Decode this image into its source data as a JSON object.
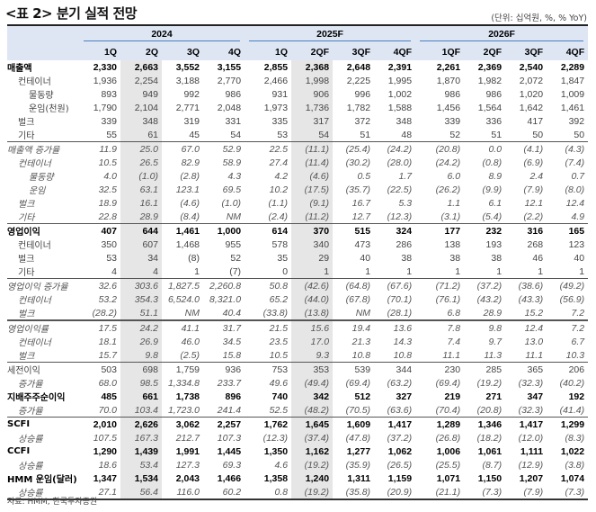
{
  "title": "<표 2> 분기 실적 전망",
  "unit": "(단위: 십억원, %, % YoY)",
  "years": [
    "2024",
    "2025F",
    "2026F"
  ],
  "quarters": [
    "1Q",
    "2Q",
    "3Q",
    "4Q",
    "1Q",
    "2QF",
    "3QF",
    "4QF",
    "1QF",
    "2QF",
    "3QF",
    "4QF"
  ],
  "rows": [
    {
      "label": "매출액",
      "style": "bold",
      "indent": 0,
      "values": [
        "2,330",
        "2,663",
        "3,552",
        "3,155",
        "2,855",
        "2,368",
        "2,648",
        "2,391",
        "2,261",
        "2,369",
        "2,540",
        "2,289"
      ]
    },
    {
      "label": "컨테이너",
      "style": "normal",
      "indent": 1,
      "values": [
        "1,936",
        "2,254",
        "3,188",
        "2,770",
        "2,466",
        "1,998",
        "2,225",
        "1,995",
        "1,870",
        "1,982",
        "2,072",
        "1,847"
      ]
    },
    {
      "label": "물동량",
      "style": "normal",
      "indent": 2,
      "values": [
        "893",
        "949",
        "992",
        "986",
        "931",
        "906",
        "996",
        "1,002",
        "986",
        "986",
        "1,020",
        "1,009"
      ]
    },
    {
      "label": "운임(천원)",
      "style": "normal",
      "indent": 2,
      "values": [
        "1,790",
        "2,104",
        "2,771",
        "2,048",
        "1,973",
        "1,736",
        "1,782",
        "1,588",
        "1,456",
        "1,564",
        "1,642",
        "1,461"
      ]
    },
    {
      "label": "벌크",
      "style": "normal",
      "indent": 1,
      "values": [
        "339",
        "348",
        "319",
        "331",
        "335",
        "317",
        "372",
        "348",
        "339",
        "336",
        "417",
        "392"
      ]
    },
    {
      "label": "기타",
      "style": "normal",
      "indent": 1,
      "values": [
        "55",
        "61",
        "45",
        "54",
        "53",
        "54",
        "51",
        "48",
        "52",
        "51",
        "50",
        "50"
      ]
    },
    {
      "label": "매출액 증가율",
      "style": "growth",
      "indent": 0,
      "sep": 1,
      "values": [
        "11.9",
        "25.0",
        "67.0",
        "52.9",
        "22.5",
        "(11.1)",
        "(25.4)",
        "(24.2)",
        "(20.8)",
        "0.0",
        "(4.1)",
        "(4.3)"
      ]
    },
    {
      "label": "컨테이너",
      "style": "growth",
      "indent": 1,
      "values": [
        "10.5",
        "26.5",
        "82.9",
        "58.9",
        "27.4",
        "(11.4)",
        "(30.2)",
        "(28.0)",
        "(24.2)",
        "(0.8)",
        "(6.9)",
        "(7.4)"
      ]
    },
    {
      "label": "물동량",
      "style": "growth",
      "indent": 2,
      "values": [
        "4.0",
        "(1.0)",
        "(2.8)",
        "4.3",
        "4.2",
        "(4.6)",
        "0.5",
        "1.7",
        "6.0",
        "8.9",
        "2.4",
        "0.7"
      ]
    },
    {
      "label": "운임",
      "style": "growth",
      "indent": 2,
      "values": [
        "32.5",
        "63.1",
        "123.1",
        "69.5",
        "10.2",
        "(17.5)",
        "(35.7)",
        "(22.5)",
        "(26.2)",
        "(9.9)",
        "(7.9)",
        "(8.0)"
      ]
    },
    {
      "label": "벌크",
      "style": "growth",
      "indent": 1,
      "values": [
        "18.9",
        "16.1",
        "(4.6)",
        "(1.0)",
        "(1.1)",
        "(9.1)",
        "16.7",
        "5.3",
        "1.1",
        "6.1",
        "12.1",
        "12.4"
      ]
    },
    {
      "label": "기타",
      "style": "growth",
      "indent": 1,
      "values": [
        "22.8",
        "28.9",
        "(8.4)",
        "NM",
        "(2.4)",
        "(11.2)",
        "12.7",
        "(12.3)",
        "(3.1)",
        "(5.4)",
        "(2.2)",
        "4.9"
      ]
    },
    {
      "label": "영업이익",
      "style": "bold",
      "indent": 0,
      "sep": 1,
      "values": [
        "407",
        "644",
        "1,461",
        "1,000",
        "614",
        "370",
        "515",
        "324",
        "177",
        "232",
        "316",
        "165"
      ]
    },
    {
      "label": "컨테이너",
      "style": "normal",
      "indent": 1,
      "values": [
        "350",
        "607",
        "1,468",
        "955",
        "578",
        "340",
        "473",
        "286",
        "138",
        "193",
        "268",
        "123"
      ]
    },
    {
      "label": "벌크",
      "style": "normal",
      "indent": 1,
      "values": [
        "53",
        "34",
        "(8)",
        "52",
        "35",
        "29",
        "40",
        "38",
        "38",
        "38",
        "46",
        "40"
      ]
    },
    {
      "label": "기타",
      "style": "normal",
      "indent": 1,
      "values": [
        "4",
        "4",
        "1",
        "(7)",
        "0",
        "1",
        "1",
        "1",
        "1",
        "1",
        "1",
        "1"
      ]
    },
    {
      "label": "영업이익 증가율",
      "style": "growth",
      "indent": 0,
      "sep": 1,
      "values": [
        "32.6",
        "303.6",
        "1,827.5",
        "2,260.8",
        "50.8",
        "(42.6)",
        "(64.8)",
        "(67.6)",
        "(71.2)",
        "(37.2)",
        "(38.6)",
        "(49.2)"
      ]
    },
    {
      "label": "컨테이너",
      "style": "growth",
      "indent": 1,
      "values": [
        "53.2",
        "354.3",
        "6,524.0",
        "8,321.0",
        "65.2",
        "(44.0)",
        "(67.8)",
        "(70.1)",
        "(76.1)",
        "(43.2)",
        "(43.3)",
        "(56.9)"
      ]
    },
    {
      "label": "벌크",
      "style": "growth",
      "indent": 1,
      "values": [
        "(28.2)",
        "51.1",
        "NM",
        "40.4",
        "(33.8)",
        "(13.8)",
        "NM",
        "(28.1)",
        "6.8",
        "28.9",
        "15.2",
        "7.2"
      ]
    },
    {
      "label": "영업이익률",
      "style": "growth",
      "indent": 0,
      "sep": 2,
      "values": [
        "17.5",
        "24.2",
        "41.1",
        "31.7",
        "21.5",
        "15.6",
        "19.4",
        "13.6",
        "7.8",
        "9.8",
        "12.4",
        "7.2"
      ]
    },
    {
      "label": "컨테이너",
      "style": "growth",
      "indent": 1,
      "values": [
        "18.1",
        "26.9",
        "46.0",
        "34.5",
        "23.5",
        "17.0",
        "21.3",
        "14.3",
        "7.4",
        "9.7",
        "13.0",
        "6.7"
      ]
    },
    {
      "label": "벌크",
      "style": "growth",
      "indent": 1,
      "values": [
        "15.7",
        "9.8",
        "(2.5)",
        "15.8",
        "10.5",
        "9.3",
        "10.8",
        "10.8",
        "11.1",
        "11.3",
        "11.1",
        "10.3"
      ]
    },
    {
      "label": "세전이익",
      "style": "normal",
      "indent": 0,
      "sep": 1,
      "values": [
        "503",
        "698",
        "1,759",
        "936",
        "753",
        "353",
        "539",
        "344",
        "230",
        "285",
        "365",
        "206"
      ]
    },
    {
      "label": "증가율",
      "style": "growth",
      "indent": 1,
      "values": [
        "68.0",
        "98.5",
        "1,334.8",
        "233.7",
        "49.6",
        "(49.4)",
        "(69.4)",
        "(63.2)",
        "(69.4)",
        "(19.2)",
        "(32.3)",
        "(40.2)"
      ]
    },
    {
      "label": "지배주주순이익",
      "style": "bold",
      "indent": 0,
      "values": [
        "485",
        "661",
        "1,738",
        "896",
        "740",
        "342",
        "512",
        "327",
        "219",
        "271",
        "347",
        "192"
      ]
    },
    {
      "label": "증가율",
      "style": "growth",
      "indent": 1,
      "values": [
        "70.0",
        "103.4",
        "1,723.0",
        "241.4",
        "52.5",
        "(48.2)",
        "(70.5)",
        "(63.6)",
        "(70.4)",
        "(20.8)",
        "(32.3)",
        "(41.4)"
      ]
    },
    {
      "label": "SCFI",
      "style": "bold",
      "indent": 0,
      "sep": 1,
      "values": [
        "2,010",
        "2,626",
        "3,062",
        "2,257",
        "1,762",
        "1,645",
        "1,609",
        "1,417",
        "1,289",
        "1,346",
        "1,417",
        "1,299"
      ]
    },
    {
      "label": "상승률",
      "style": "growth",
      "indent": 1,
      "values": [
        "107.5",
        "167.3",
        "212.7",
        "107.3",
        "(12.3)",
        "(37.4)",
        "(47.8)",
        "(37.2)",
        "(26.8)",
        "(18.2)",
        "(12.0)",
        "(8.3)"
      ]
    },
    {
      "label": "CCFI",
      "style": "bold",
      "indent": 0,
      "values": [
        "1,290",
        "1,439",
        "1,991",
        "1,445",
        "1,350",
        "1,162",
        "1,277",
        "1,062",
        "1,006",
        "1,061",
        "1,111",
        "1,022"
      ]
    },
    {
      "label": "상승률",
      "style": "growth",
      "indent": 1,
      "values": [
        "18.6",
        "53.4",
        "127.3",
        "69.3",
        "4.6",
        "(19.2)",
        "(35.9)",
        "(26.5)",
        "(25.5)",
        "(8.7)",
        "(12.9)",
        "(3.8)"
      ]
    },
    {
      "label": "HMM 운임(달러)",
      "style": "bold",
      "indent": 0,
      "values": [
        "1,347",
        "1,534",
        "2,043",
        "1,466",
        "1,358",
        "1,240",
        "1,311",
        "1,159",
        "1,071",
        "1,150",
        "1,207",
        "1,074"
      ]
    },
    {
      "label": "상승률",
      "style": "growth",
      "indent": 1,
      "values": [
        "27.1",
        "56.4",
        "116.0",
        "60.2",
        "0.8",
        "(19.2)",
        "(35.8)",
        "(20.9)",
        "(21.1)",
        "(7.3)",
        "(7.9)",
        "(7.3)"
      ]
    }
  ],
  "source": "자료: HMM, 한국투자증권",
  "colors": {
    "header_bg": "#dee6f4",
    "header_rule": "#4a7fc1",
    "shade": "#e6e6e6"
  }
}
